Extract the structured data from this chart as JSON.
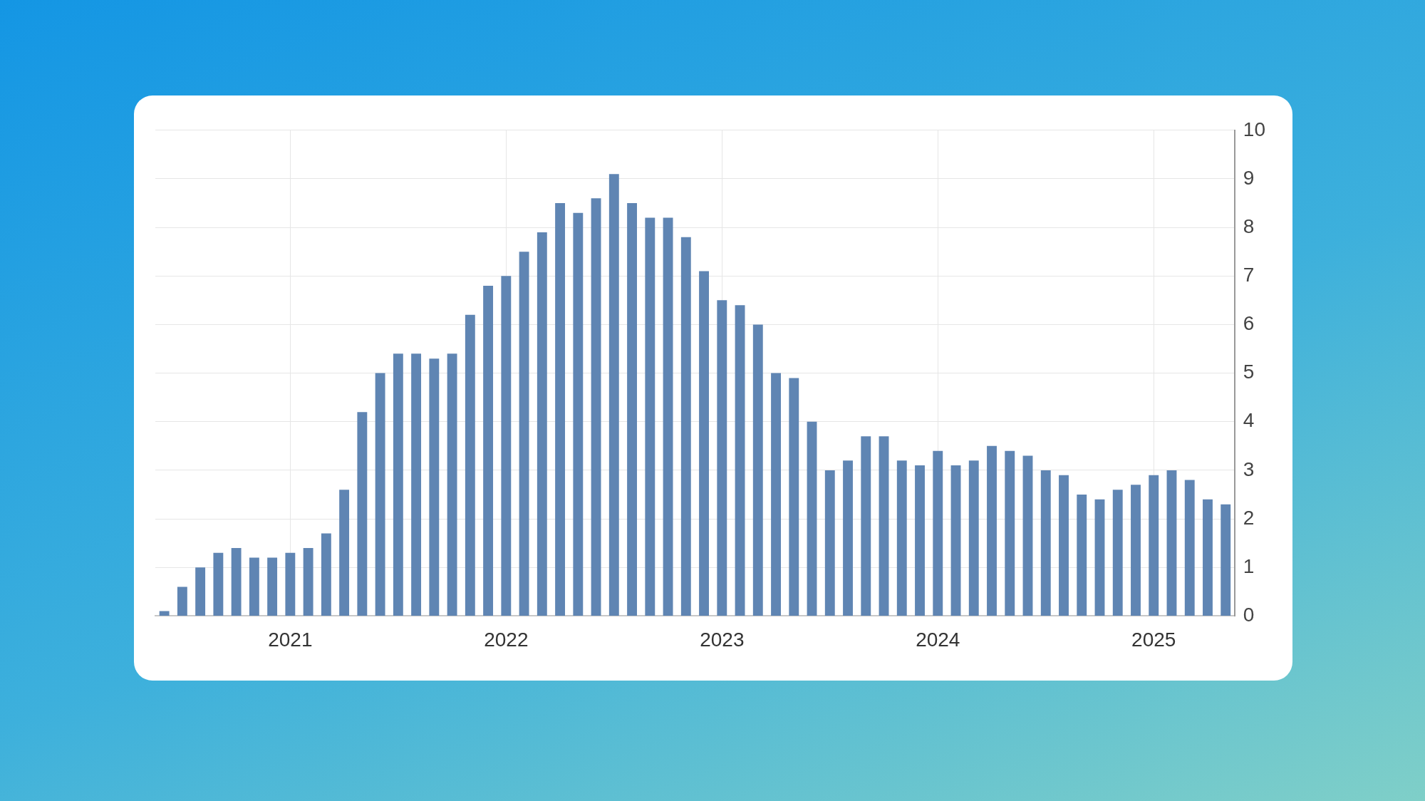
{
  "chart_data": {
    "type": "bar",
    "categories": [
      null,
      null,
      null,
      null,
      null,
      null,
      null,
      "2021",
      null,
      null,
      null,
      null,
      null,
      null,
      null,
      null,
      null,
      null,
      null,
      "2022",
      null,
      null,
      null,
      null,
      null,
      null,
      null,
      null,
      null,
      null,
      null,
      "2023",
      null,
      null,
      null,
      null,
      null,
      null,
      null,
      null,
      null,
      null,
      null,
      "2024",
      null,
      null,
      null,
      null,
      null,
      null,
      null,
      null,
      null,
      null,
      null,
      "2025",
      null,
      null,
      null,
      null
    ],
    "values": [
      0.1,
      0.6,
      1.0,
      1.3,
      1.4,
      1.2,
      1.2,
      1.3,
      1.4,
      1.7,
      2.6,
      4.2,
      5.0,
      5.4,
      5.4,
      5.3,
      5.4,
      6.2,
      6.8,
      7.0,
      7.5,
      7.9,
      8.5,
      8.3,
      8.6,
      9.1,
      8.5,
      8.2,
      8.2,
      7.8,
      7.1,
      6.5,
      6.4,
      6.0,
      5.0,
      4.9,
      4.0,
      3.0,
      3.2,
      3.7,
      3.7,
      3.2,
      3.1,
      3.4,
      3.1,
      3.2,
      3.5,
      3.4,
      3.3,
      3.0,
      2.9,
      2.5,
      2.4,
      2.6,
      2.7,
      2.9,
      3.0,
      2.8,
      2.4,
      2.3
    ],
    "color": "#5f85b3",
    "ylim": [
      0,
      10
    ],
    "yticks": [
      0,
      1,
      2,
      3,
      4,
      5,
      6,
      7,
      8,
      9,
      10
    ],
    "grid": true
  }
}
